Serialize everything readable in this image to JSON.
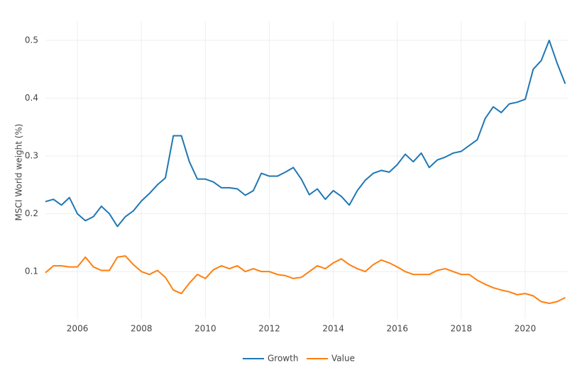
{
  "chart_data": {
    "type": "line",
    "y_label": "MSCI World weight (%)",
    "x": [
      2005.0,
      2005.25,
      2005.5,
      2005.75,
      2006.0,
      2006.25,
      2006.5,
      2006.75,
      2007.0,
      2007.25,
      2007.5,
      2007.75,
      2008.0,
      2008.25,
      2008.5,
      2008.75,
      2009.0,
      2009.25,
      2009.5,
      2009.75,
      2010.0,
      2010.25,
      2010.5,
      2010.75,
      2011.0,
      2011.25,
      2011.5,
      2011.75,
      2012.0,
      2012.25,
      2012.5,
      2012.75,
      2013.0,
      2013.25,
      2013.5,
      2013.75,
      2014.0,
      2014.25,
      2014.5,
      2014.75,
      2015.0,
      2015.25,
      2015.5,
      2015.75,
      2016.0,
      2016.25,
      2016.5,
      2016.75,
      2017.0,
      2017.25,
      2017.5,
      2017.75,
      2018.0,
      2018.25,
      2018.5,
      2018.75,
      2019.0,
      2019.25,
      2019.5,
      2019.75,
      2020.0,
      2020.25,
      2020.5,
      2020.75,
      2021.0,
      2021.25
    ],
    "series": [
      {
        "name": "Growth",
        "color": "#1f77b4",
        "values": [
          0.221,
          0.225,
          0.215,
          0.228,
          0.2,
          0.188,
          0.195,
          0.213,
          0.2,
          0.178,
          0.195,
          0.205,
          0.222,
          0.235,
          0.25,
          0.262,
          0.335,
          0.335,
          0.29,
          0.26,
          0.26,
          0.255,
          0.245,
          0.245,
          0.243,
          0.232,
          0.24,
          0.27,
          0.265,
          0.265,
          0.272,
          0.28,
          0.26,
          0.233,
          0.243,
          0.225,
          0.24,
          0.23,
          0.215,
          0.24,
          0.258,
          0.27,
          0.275,
          0.272,
          0.285,
          0.303,
          0.29,
          0.305,
          0.28,
          0.293,
          0.298,
          0.305,
          0.308,
          0.318,
          0.328,
          0.365,
          0.385,
          0.375,
          0.39,
          0.393,
          0.398,
          0.45,
          0.465,
          0.5,
          0.46,
          0.425
        ]
      },
      {
        "name": "Value",
        "color": "#ff7f0e",
        "values": [
          0.098,
          0.11,
          0.11,
          0.108,
          0.108,
          0.125,
          0.108,
          0.102,
          0.102,
          0.125,
          0.127,
          0.112,
          0.1,
          0.095,
          0.102,
          0.09,
          0.068,
          0.062,
          0.08,
          0.095,
          0.088,
          0.103,
          0.11,
          0.105,
          0.11,
          0.1,
          0.105,
          0.1,
          0.1,
          0.095,
          0.093,
          0.088,
          0.09,
          0.1,
          0.11,
          0.105,
          0.115,
          0.122,
          0.112,
          0.105,
          0.1,
          0.112,
          0.12,
          0.115,
          0.108,
          0.1,
          0.095,
          0.095,
          0.095,
          0.102,
          0.105,
          0.1,
          0.095,
          0.095,
          0.085,
          0.078,
          0.072,
          0.068,
          0.065,
          0.06,
          0.062,
          0.058,
          0.048,
          0.045,
          0.048,
          0.055
        ]
      }
    ],
    "xlim": [
      2005,
      2021.33
    ],
    "xticks": [
      2006,
      2008,
      2010,
      2012,
      2014,
      2016,
      2018,
      2020
    ],
    "ylim": [
      0.018,
      0.533
    ],
    "yticks": [
      0.1,
      0.2,
      0.3,
      0.4,
      0.5
    ],
    "grid": true,
    "legend": "bottom"
  }
}
